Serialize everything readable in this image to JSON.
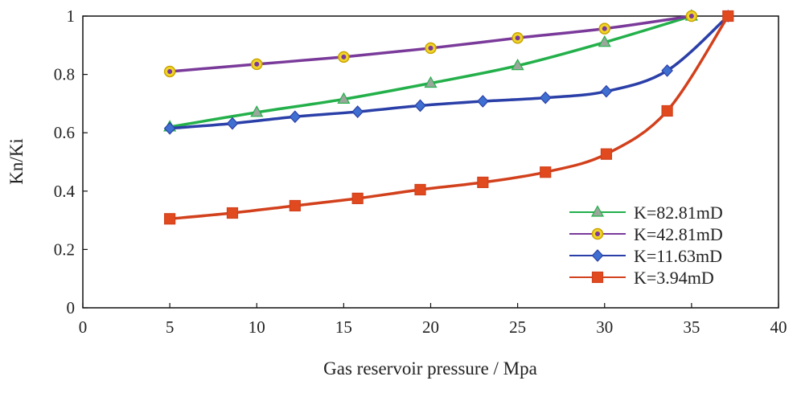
{
  "chart_data": {
    "type": "line",
    "xlabel": "Gas reservoir pressure / Mpa",
    "ylabel": "Kn/Ki",
    "xlim": [
      0,
      40
    ],
    "xticks": [
      0,
      5,
      10,
      15,
      20,
      25,
      30,
      35,
      40
    ],
    "ylim": [
      0,
      1
    ],
    "yticks": [
      0,
      0.2,
      0.4,
      0.6,
      0.8,
      1
    ],
    "grid": false,
    "legend": "lower right",
    "smooth": true,
    "series": [
      {
        "name": "K=82.81mD",
        "color": "#23b04a",
        "marker": "triangle",
        "marker_color": "#9aa89c",
        "x": [
          5,
          10,
          15,
          20,
          25,
          30,
          35
        ],
        "values": [
          0.62,
          0.67,
          0.715,
          0.77,
          0.83,
          0.91,
          1.0
        ]
      },
      {
        "name": "K=42.81mD",
        "color": "#7a3a9a",
        "marker": "circle",
        "marker_color": "#f2d52a",
        "x": [
          5,
          10,
          15,
          20,
          25,
          30,
          35
        ],
        "values": [
          0.81,
          0.835,
          0.86,
          0.89,
          0.925,
          0.957,
          1.0
        ]
      },
      {
        "name": "K=11.63mD",
        "color": "#2a3fa8",
        "marker": "diamond",
        "marker_color": "#3f6fd0",
        "x": [
          5,
          8.6,
          12.2,
          15.8,
          19.4,
          23,
          26.6,
          30.1,
          33.6,
          37.1
        ],
        "values": [
          0.615,
          0.632,
          0.655,
          0.672,
          0.693,
          0.708,
          0.72,
          0.742,
          0.813,
          1.0
        ]
      },
      {
        "name": "K=3.94mD",
        "color": "#d2401c",
        "marker": "square",
        "marker_color": "#e04a1e",
        "x": [
          5,
          8.6,
          12.2,
          15.8,
          19.4,
          23,
          26.6,
          30.1,
          33.6,
          37.1
        ],
        "values": [
          0.305,
          0.325,
          0.35,
          0.375,
          0.405,
          0.43,
          0.465,
          0.527,
          0.675,
          1.0
        ]
      }
    ]
  }
}
